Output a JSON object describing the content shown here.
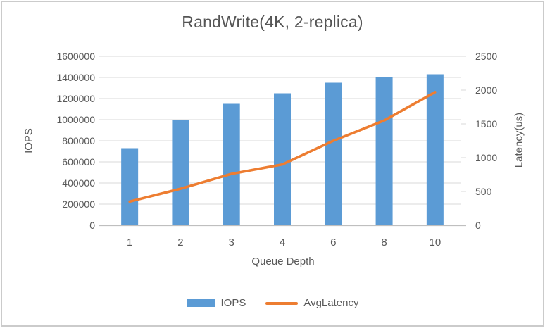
{
  "window": {
    "background": "#FFFFFF",
    "border_color": "#CBCBCB"
  },
  "chart_data": {
    "type": "combo-bar-line",
    "title": "RandWrite(4K, 2-replica)",
    "x": {
      "label": "Queue Depth",
      "categories": [
        "1",
        "2",
        "3",
        "4",
        "6",
        "8",
        "10"
      ]
    },
    "axes": {
      "left": {
        "title": "IOPS",
        "min": 0,
        "max": 1600000,
        "step": 200000,
        "ticks": [
          "0",
          "200000",
          "400000",
          "600000",
          "800000",
          "1000000",
          "1200000",
          "1400000",
          "1600000"
        ]
      },
      "right": {
        "title": "Latency(us)",
        "min": 0,
        "max": 2500,
        "step": 500,
        "ticks": [
          "0",
          "500",
          "1000",
          "1500",
          "2000",
          "2500"
        ]
      }
    },
    "series": [
      {
        "name": "IOPS",
        "type": "bar",
        "axis": "left",
        "color": "#5B9BD5",
        "values": [
          730000,
          1000000,
          1150000,
          1250000,
          1350000,
          1400000,
          1430000
        ]
      },
      {
        "name": "AvgLatency",
        "type": "line",
        "axis": "right",
        "color": "#ED7D31",
        "values": [
          350,
          540,
          760,
          900,
          1250,
          1550,
          1970
        ]
      }
    ],
    "grid": true,
    "grid_color": "#D9D9D9",
    "axis_line_color": "#BFBFBF",
    "tick_label_color": "#595959",
    "legend_position": "bottom"
  }
}
